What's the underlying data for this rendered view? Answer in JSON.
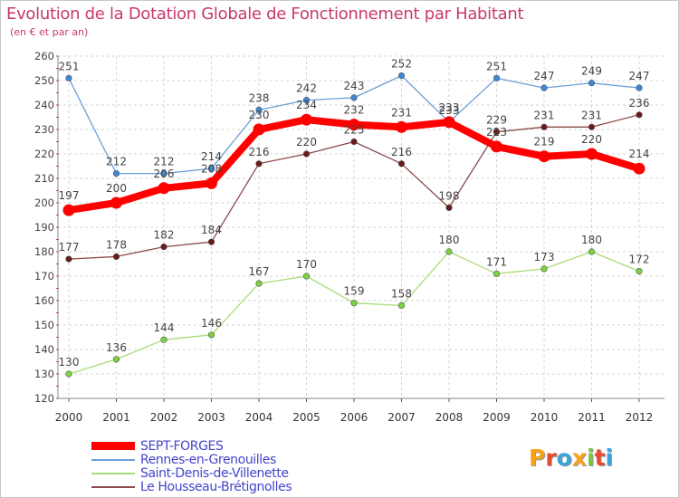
{
  "title": "Evolution de la Dotation Globale de Fonctionnement par Habitant",
  "subtitle": "(en € et par an)",
  "logo_text": "Proxiti",
  "chart_data": {
    "type": "line",
    "title": "Evolution de la Dotation Globale de Fonctionnement par Habitant",
    "subtitle": "(en € et par an)",
    "xlabel": "",
    "ylabel": "",
    "ylim": [
      120,
      260
    ],
    "y_ticks": [
      120,
      130,
      140,
      150,
      160,
      170,
      180,
      190,
      200,
      210,
      220,
      230,
      240,
      250,
      260
    ],
    "grid": true,
    "legend_position": "bottom-left",
    "x": [
      "2000",
      "2001",
      "2002",
      "2003",
      "2004",
      "2005",
      "2006",
      "2007",
      "2008",
      "2009",
      "2010",
      "2011",
      "2012"
    ],
    "series": [
      {
        "name": "Rennes-en-Grenouilles",
        "color": "#6a9fd8",
        "marker_color": "#3f88d6",
        "values": [
          251,
          212,
          212,
          214,
          238,
          242,
          243,
          252,
          233,
          251,
          247,
          249,
          247
        ],
        "labels": [
          "251",
          "212",
          "212",
          "214",
          "238",
          "242",
          "243",
          "252",
          "233",
          "251",
          "247",
          "249",
          "247"
        ]
      },
      {
        "name": "Le Housseau-Brétignolles",
        "color": "#8c4a4a",
        "marker_color": "#6b1a1a",
        "values": [
          177,
          178,
          182,
          184,
          216,
          220,
          225,
          216,
          198,
          229,
          231,
          231,
          236
        ],
        "labels": [
          "177",
          "178",
          "182",
          "184",
          "216",
          "220",
          "225",
          "216",
          "198",
          "229",
          "231",
          "231",
          "236"
        ]
      },
      {
        "name": "Saint-Denis-de-Villenette",
        "color": "#a8dc78",
        "marker_color": "#7ed23f",
        "values": [
          130,
          136,
          144,
          146,
          167,
          170,
          159,
          158,
          180,
          171,
          173,
          180,
          172
        ],
        "labels": [
          "130",
          "136",
          "144",
          "146",
          "167",
          "170",
          "159",
          "158",
          "180",
          "171",
          "173",
          "180",
          "172"
        ]
      },
      {
        "name": "SEPT-FORGES",
        "color": "#ff0000",
        "marker_color": "#ff0000",
        "values": [
          197,
          200,
          206,
          208,
          230,
          234,
          232,
          231,
          233,
          223,
          219,
          220,
          214
        ],
        "labels": [
          "197",
          "200",
          "206",
          "208",
          "230",
          "234",
          "232",
          "231",
          "233",
          "223",
          "219",
          "220",
          "214"
        ]
      }
    ]
  },
  "legend": [
    {
      "name": "SEPT-FORGES",
      "color": "#ff0000"
    },
    {
      "name": "Rennes-en-Grenouilles",
      "color": "#6a9fd8"
    },
    {
      "name": "Saint-Denis-de-Villenette",
      "color": "#a8dc78"
    },
    {
      "name": "Le Housseau-Brétignolles",
      "color": "#8c4a4a"
    }
  ]
}
